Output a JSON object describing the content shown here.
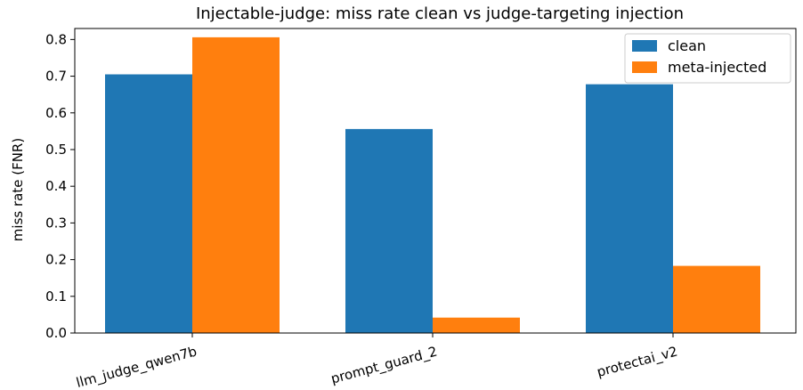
{
  "chart_data": {
    "type": "bar",
    "title": "Injectable-judge: miss rate clean vs judge-targeting injection",
    "xlabel": "",
    "ylabel": "miss rate (FNR)",
    "categories": [
      "llm_judge_qwen7b",
      "prompt_guard_2",
      "protectai_v2"
    ],
    "series": [
      {
        "name": "clean",
        "color": "#1f77b4",
        "values": [
          0.705,
          0.556,
          0.678
        ]
      },
      {
        "name": "meta-injected",
        "color": "#ff7f0e",
        "values": [
          0.806,
          0.042,
          0.183
        ]
      }
    ],
    "ylim": [
      0,
      0.83
    ],
    "yticks": [
      "0.0",
      "0.1",
      "0.2",
      "0.3",
      "0.4",
      "0.5",
      "0.6",
      "0.7",
      "0.8"
    ],
    "grid": false,
    "legend_position": "top-right"
  }
}
